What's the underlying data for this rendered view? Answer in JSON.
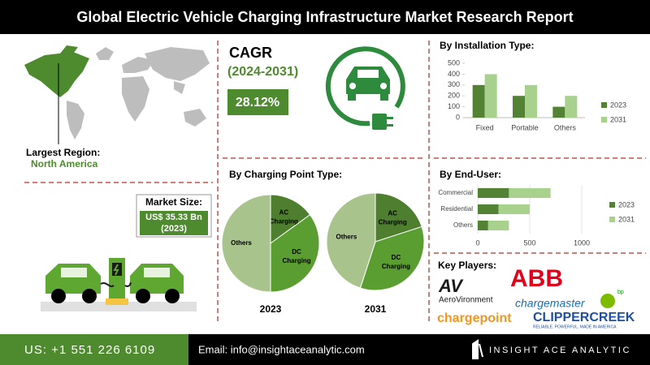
{
  "header": {
    "title": "Global Electric Vehicle Charging Infrastructure Market Research Report"
  },
  "largest_region": {
    "label": "Largest Region:",
    "value": "North America"
  },
  "market_size": {
    "label": "Market Size:",
    "value": "US$ 35.33 Bn",
    "year": "(2023)"
  },
  "cagr": {
    "label": "CAGR",
    "period": "(2024-2031)",
    "value": "28.12%"
  },
  "installation_type": {
    "type": "bar",
    "title": "By Installation Type:",
    "categories": [
      "Fixed",
      "Portable",
      "Others"
    ],
    "series": [
      {
        "name": "2023",
        "color": "#548235",
        "values": [
          300,
          200,
          100
        ]
      },
      {
        "name": "2031",
        "color": "#a9d18e",
        "values": [
          400,
          300,
          200
        ]
      }
    ],
    "ylim": [
      0,
      500
    ],
    "yticks": [
      0,
      100,
      200,
      300,
      400,
      500
    ],
    "legend": "right"
  },
  "end_user": {
    "type": "hbar",
    "title": "By End-User:",
    "categories": [
      "Commercial",
      "Residential",
      "Others"
    ],
    "series": [
      {
        "name": "2023",
        "color": "#548235",
        "values": [
          300,
          200,
          100
        ]
      },
      {
        "name": "2031",
        "color": "#a9d18e",
        "values": [
          400,
          300,
          200
        ]
      }
    ],
    "xlim": [
      0,
      1000
    ],
    "xticks": [
      0,
      500,
      1000
    ],
    "grid": true,
    "legend": "right"
  },
  "charging_point": {
    "type": "pie",
    "title": "By Charging Point Type:",
    "categories": [
      "AC Charging",
      "DC Charging",
      "Others"
    ],
    "colors": [
      "#4e7f2f",
      "#5a9e32",
      "#a8c48c"
    ],
    "charts": [
      {
        "label": "2023",
        "values": [
          15,
          35,
          50
        ]
      },
      {
        "label": "2031",
        "values": [
          20,
          35,
          45
        ]
      }
    ]
  },
  "key_players": {
    "title": "Key Players:",
    "aerovironment": {
      "mark": "AV",
      "name": "AeroVironment"
    },
    "abb": "ABB",
    "chargemaster": {
      "name": "chargemaster",
      "bp": "bp"
    },
    "chargepoint": "chargepoint",
    "clippercreek": {
      "name": "CLIPPERCREEK",
      "tagline": "RELIABLE. POWERFUL. MADE IN AMERICA"
    }
  },
  "footer": {
    "phone": "US: +1 551 226 6109",
    "email": "Email: info@insightaceanalytic.com",
    "brand": "INSIGHT ACE ANALYTIC"
  }
}
